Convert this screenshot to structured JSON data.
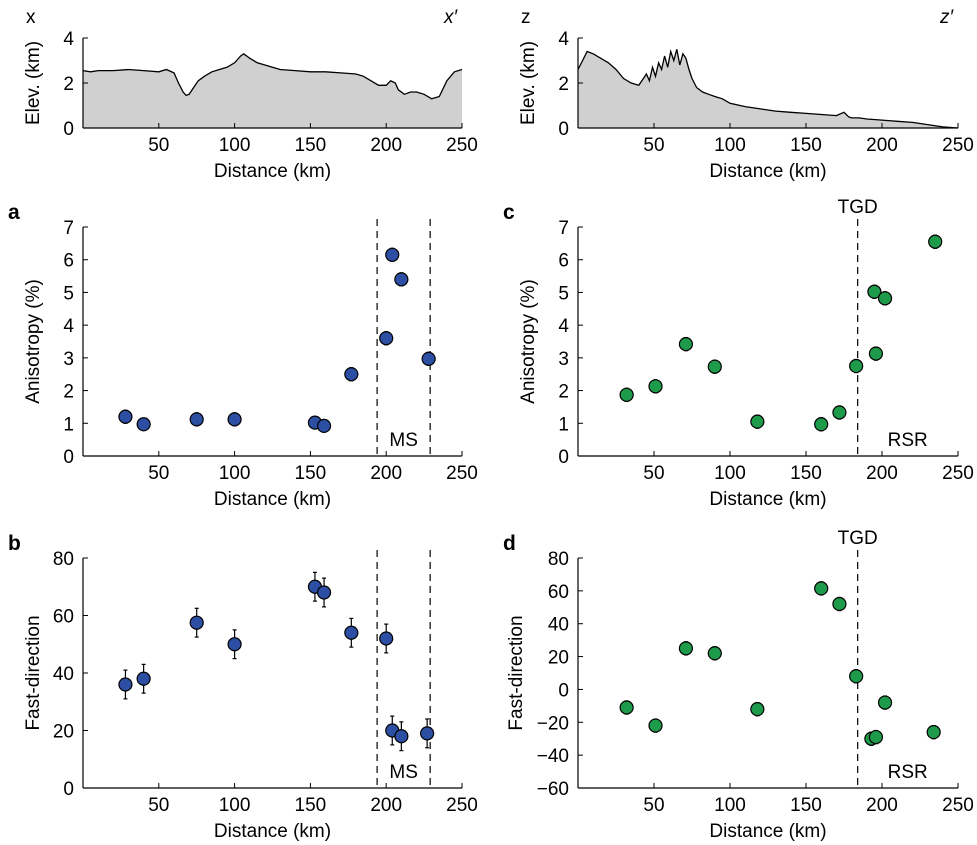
{
  "chart_data": [
    {
      "id": "elev_x",
      "type": "area",
      "profile_start_label": "x",
      "profile_end_label": "x′",
      "xlabel": "Distance (km)",
      "ylabel": "Elev. (km)",
      "xlim": [
        0,
        250
      ],
      "ylim": [
        0,
        4
      ],
      "xticks": [
        50,
        100,
        150,
        200,
        250
      ],
      "yticks": [
        0,
        2,
        4
      ],
      "fill_color": "#d0d0d0",
      "x": [
        0,
        5,
        10,
        20,
        30,
        40,
        50,
        55,
        60,
        63,
        66,
        68,
        70,
        73,
        76,
        80,
        85,
        90,
        95,
        100,
        104,
        106,
        110,
        115,
        120,
        125,
        130,
        140,
        150,
        160,
        170,
        180,
        185,
        190,
        195,
        200,
        203,
        206,
        208,
        212,
        216,
        220,
        225,
        230,
        235,
        240,
        245,
        250
      ],
      "y": [
        2.55,
        2.5,
        2.55,
        2.55,
        2.6,
        2.55,
        2.5,
        2.6,
        2.45,
        2.0,
        1.6,
        1.45,
        1.5,
        1.8,
        2.1,
        2.3,
        2.5,
        2.6,
        2.7,
        2.9,
        3.2,
        3.3,
        3.1,
        2.9,
        2.8,
        2.7,
        2.6,
        2.55,
        2.5,
        2.5,
        2.45,
        2.4,
        2.3,
        2.1,
        1.9,
        1.9,
        2.1,
        2.0,
        1.7,
        1.5,
        1.6,
        1.6,
        1.5,
        1.3,
        1.4,
        2.1,
        2.5,
        2.6
      ]
    },
    {
      "id": "elev_z",
      "type": "area",
      "profile_start_label": "z",
      "profile_end_label": "z′",
      "xlabel": "Distance (km)",
      "ylabel": "Elev. (km)",
      "xlim": [
        0,
        250
      ],
      "ylim": [
        0,
        4
      ],
      "xticks": [
        50,
        100,
        150,
        200,
        250
      ],
      "yticks": [
        0,
        2,
        4
      ],
      "fill_color": "#d0d0d0",
      "x": [
        0,
        3,
        6,
        10,
        15,
        20,
        25,
        30,
        35,
        40,
        43,
        45,
        47,
        49,
        51,
        53,
        55,
        57,
        59,
        61,
        63,
        65,
        67,
        69,
        71,
        73,
        75,
        78,
        82,
        86,
        90,
        95,
        100,
        110,
        120,
        130,
        140,
        150,
        160,
        170,
        175,
        178,
        180,
        185,
        190,
        200,
        210,
        220,
        230,
        240,
        250
      ],
      "y": [
        2.6,
        3.0,
        3.4,
        3.3,
        3.1,
        2.9,
        2.6,
        2.2,
        2.0,
        1.9,
        2.2,
        2.4,
        2.1,
        2.7,
        2.3,
        2.9,
        2.6,
        3.2,
        2.7,
        3.4,
        3.0,
        3.5,
        2.8,
        3.3,
        3.1,
        2.6,
        2.2,
        1.8,
        1.6,
        1.5,
        1.4,
        1.3,
        1.1,
        0.95,
        0.85,
        0.75,
        0.7,
        0.65,
        0.6,
        0.55,
        0.7,
        0.5,
        0.45,
        0.45,
        0.4,
        0.35,
        0.3,
        0.25,
        0.15,
        0.05,
        0.0
      ]
    },
    {
      "id": "a",
      "panel_label": "a",
      "type": "scatter",
      "xlabel": "Distance (km)",
      "ylabel": "Anisotropy (%)",
      "xlim": [
        0,
        250
      ],
      "ylim": [
        0,
        7
      ],
      "xticks": [
        50,
        100,
        150,
        200,
        250
      ],
      "yticks": [
        0,
        1,
        2,
        3,
        4,
        5,
        6,
        7
      ],
      "marker_color": "#2c4fa3",
      "x": [
        28,
        40,
        75,
        100,
        153,
        159,
        177,
        200,
        204,
        210,
        228
      ],
      "y": [
        1.2,
        0.97,
        1.12,
        1.12,
        1.02,
        0.92,
        2.5,
        3.6,
        6.15,
        5.4,
        2.97
      ],
      "err": [
        0.2,
        0.18,
        0.2,
        0.2,
        0.18,
        0.18,
        0.2,
        0.2,
        0.2,
        0.2,
        0.2
      ],
      "vlines": [
        194,
        229
      ],
      "annotation": "MS"
    },
    {
      "id": "b",
      "panel_label": "b",
      "type": "scatter",
      "xlabel": "Distance (km)",
      "ylabel": "Fast-direction",
      "xlim": [
        0,
        250
      ],
      "ylim": [
        0,
        80
      ],
      "xticks": [
        50,
        100,
        150,
        200,
        250
      ],
      "yticks": [
        0,
        20,
        40,
        60,
        80
      ],
      "marker_color": "#2c4fa3",
      "x": [
        28,
        40,
        75,
        100,
        153,
        159,
        177,
        200,
        204,
        210,
        227
      ],
      "y": [
        36,
        38,
        57.5,
        50,
        70,
        68,
        54,
        52,
        20,
        18,
        19
      ],
      "err": [
        5,
        5,
        5,
        5,
        5,
        5,
        5,
        5,
        5,
        5,
        5
      ],
      "vlines": [
        194,
        229
      ],
      "annotation": "MS"
    },
    {
      "id": "c",
      "panel_label": "c",
      "type": "scatter",
      "xlabel": "Distance (km)",
      "ylabel": "Anisotropy (%)",
      "xlim": [
        0,
        250
      ],
      "ylim": [
        0,
        7
      ],
      "xticks": [
        50,
        100,
        150,
        200,
        250
      ],
      "yticks": [
        0,
        1,
        2,
        3,
        4,
        5,
        6,
        7
      ],
      "marker_color": "#1e9b4a",
      "x": [
        32,
        51,
        71,
        90,
        118,
        160,
        172,
        183,
        195,
        196,
        202,
        235
      ],
      "y": [
        1.87,
        2.13,
        3.42,
        2.73,
        1.05,
        0.97,
        1.33,
        2.75,
        5.02,
        3.13,
        4.82,
        6.55
      ],
      "err": [
        0.2,
        0.2,
        0.2,
        0.2,
        0.2,
        0.2,
        0.2,
        0.2,
        0.2,
        0.2,
        0.2,
        0.2
      ],
      "vlines": [
        184
      ],
      "top_label": "TGD",
      "annotation": "RSR"
    },
    {
      "id": "d",
      "panel_label": "d",
      "type": "scatter",
      "xlabel": "Distance (km)",
      "ylabel": "Fast-direction",
      "xlim": [
        0,
        250
      ],
      "ylim": [
        -60,
        80
      ],
      "xticks": [
        50,
        100,
        150,
        200,
        250
      ],
      "yticks": [
        -60,
        -40,
        -20,
        0,
        20,
        40,
        60,
        80
      ],
      "marker_color": "#1e9b4a",
      "x": [
        32,
        51,
        71,
        90,
        118,
        160,
        172,
        183,
        193,
        196,
        202,
        234
      ],
      "y": [
        -11,
        -22,
        25,
        22,
        -12,
        61.5,
        52,
        8,
        -30,
        -29,
        -8,
        -26
      ],
      "err": [
        4,
        4,
        4,
        4,
        4,
        4,
        4,
        4,
        4,
        4,
        4,
        4
      ],
      "vlines": [
        184
      ],
      "top_label": "TGD",
      "annotation": "RSR"
    }
  ]
}
